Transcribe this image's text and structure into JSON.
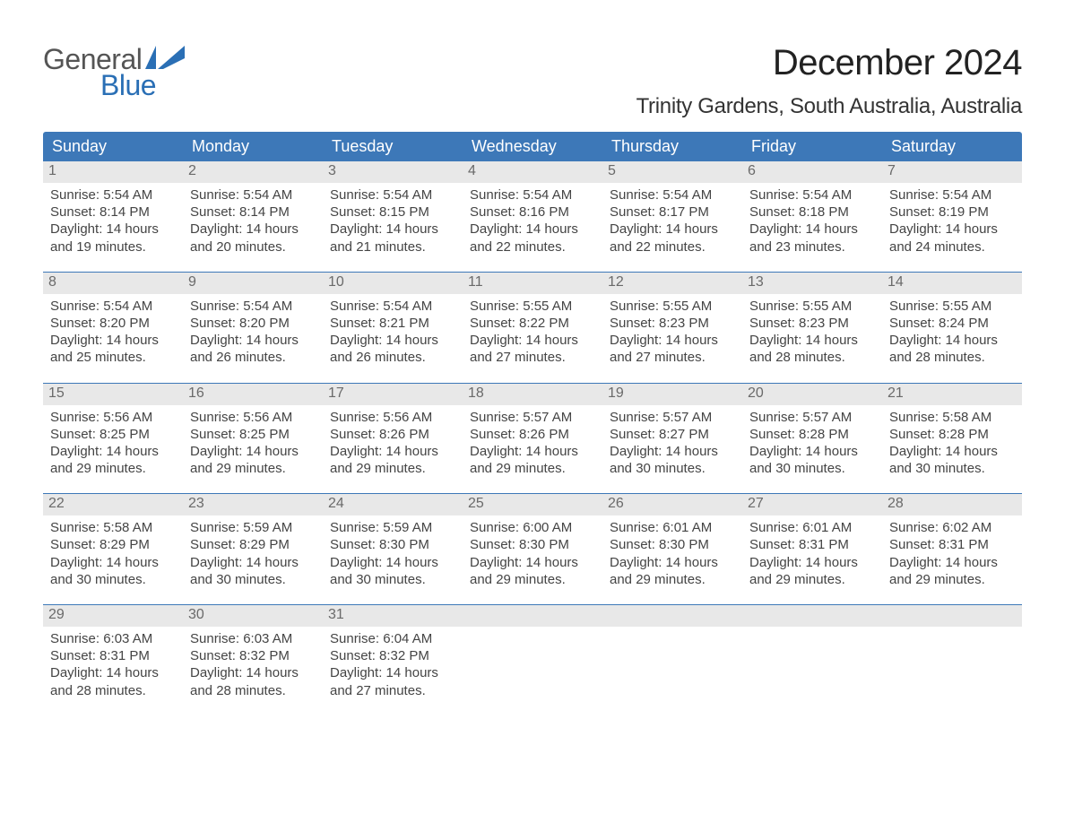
{
  "brand": {
    "word1": "General",
    "word2": "Blue",
    "word1_color": "#555555",
    "word2_color": "#2a6fb5",
    "flag_color": "#2a6fb5"
  },
  "title": {
    "month": "December 2024",
    "location": "Trinity Gardens, South Australia, Australia",
    "month_fontsize": 40,
    "location_fontsize": 24,
    "text_color": "#222222"
  },
  "calendar": {
    "header_bg": "#3d78b8",
    "header_text_color": "#ffffff",
    "daynum_bg": "#e8e8e8",
    "daynum_color": "#6a6a6a",
    "body_text_color": "#444444",
    "week_divider_color": "#3d78b8",
    "columns": [
      "Sunday",
      "Monday",
      "Tuesday",
      "Wednesday",
      "Thursday",
      "Friday",
      "Saturday"
    ],
    "weeks": [
      [
        {
          "day": "1",
          "sunrise": "Sunrise: 5:54 AM",
          "sunset": "Sunset: 8:14 PM",
          "daylight1": "Daylight: 14 hours",
          "daylight2": "and 19 minutes."
        },
        {
          "day": "2",
          "sunrise": "Sunrise: 5:54 AM",
          "sunset": "Sunset: 8:14 PM",
          "daylight1": "Daylight: 14 hours",
          "daylight2": "and 20 minutes."
        },
        {
          "day": "3",
          "sunrise": "Sunrise: 5:54 AM",
          "sunset": "Sunset: 8:15 PM",
          "daylight1": "Daylight: 14 hours",
          "daylight2": "and 21 minutes."
        },
        {
          "day": "4",
          "sunrise": "Sunrise: 5:54 AM",
          "sunset": "Sunset: 8:16 PM",
          "daylight1": "Daylight: 14 hours",
          "daylight2": "and 22 minutes."
        },
        {
          "day": "5",
          "sunrise": "Sunrise: 5:54 AM",
          "sunset": "Sunset: 8:17 PM",
          "daylight1": "Daylight: 14 hours",
          "daylight2": "and 22 minutes."
        },
        {
          "day": "6",
          "sunrise": "Sunrise: 5:54 AM",
          "sunset": "Sunset: 8:18 PM",
          "daylight1": "Daylight: 14 hours",
          "daylight2": "and 23 minutes."
        },
        {
          "day": "7",
          "sunrise": "Sunrise: 5:54 AM",
          "sunset": "Sunset: 8:19 PM",
          "daylight1": "Daylight: 14 hours",
          "daylight2": "and 24 minutes."
        }
      ],
      [
        {
          "day": "8",
          "sunrise": "Sunrise: 5:54 AM",
          "sunset": "Sunset: 8:20 PM",
          "daylight1": "Daylight: 14 hours",
          "daylight2": "and 25 minutes."
        },
        {
          "day": "9",
          "sunrise": "Sunrise: 5:54 AM",
          "sunset": "Sunset: 8:20 PM",
          "daylight1": "Daylight: 14 hours",
          "daylight2": "and 26 minutes."
        },
        {
          "day": "10",
          "sunrise": "Sunrise: 5:54 AM",
          "sunset": "Sunset: 8:21 PM",
          "daylight1": "Daylight: 14 hours",
          "daylight2": "and 26 minutes."
        },
        {
          "day": "11",
          "sunrise": "Sunrise: 5:55 AM",
          "sunset": "Sunset: 8:22 PM",
          "daylight1": "Daylight: 14 hours",
          "daylight2": "and 27 minutes."
        },
        {
          "day": "12",
          "sunrise": "Sunrise: 5:55 AM",
          "sunset": "Sunset: 8:23 PM",
          "daylight1": "Daylight: 14 hours",
          "daylight2": "and 27 minutes."
        },
        {
          "day": "13",
          "sunrise": "Sunrise: 5:55 AM",
          "sunset": "Sunset: 8:23 PM",
          "daylight1": "Daylight: 14 hours",
          "daylight2": "and 28 minutes."
        },
        {
          "day": "14",
          "sunrise": "Sunrise: 5:55 AM",
          "sunset": "Sunset: 8:24 PM",
          "daylight1": "Daylight: 14 hours",
          "daylight2": "and 28 minutes."
        }
      ],
      [
        {
          "day": "15",
          "sunrise": "Sunrise: 5:56 AM",
          "sunset": "Sunset: 8:25 PM",
          "daylight1": "Daylight: 14 hours",
          "daylight2": "and 29 minutes."
        },
        {
          "day": "16",
          "sunrise": "Sunrise: 5:56 AM",
          "sunset": "Sunset: 8:25 PM",
          "daylight1": "Daylight: 14 hours",
          "daylight2": "and 29 minutes."
        },
        {
          "day": "17",
          "sunrise": "Sunrise: 5:56 AM",
          "sunset": "Sunset: 8:26 PM",
          "daylight1": "Daylight: 14 hours",
          "daylight2": "and 29 minutes."
        },
        {
          "day": "18",
          "sunrise": "Sunrise: 5:57 AM",
          "sunset": "Sunset: 8:26 PM",
          "daylight1": "Daylight: 14 hours",
          "daylight2": "and 29 minutes."
        },
        {
          "day": "19",
          "sunrise": "Sunrise: 5:57 AM",
          "sunset": "Sunset: 8:27 PM",
          "daylight1": "Daylight: 14 hours",
          "daylight2": "and 30 minutes."
        },
        {
          "day": "20",
          "sunrise": "Sunrise: 5:57 AM",
          "sunset": "Sunset: 8:28 PM",
          "daylight1": "Daylight: 14 hours",
          "daylight2": "and 30 minutes."
        },
        {
          "day": "21",
          "sunrise": "Sunrise: 5:58 AM",
          "sunset": "Sunset: 8:28 PM",
          "daylight1": "Daylight: 14 hours",
          "daylight2": "and 30 minutes."
        }
      ],
      [
        {
          "day": "22",
          "sunrise": "Sunrise: 5:58 AM",
          "sunset": "Sunset: 8:29 PM",
          "daylight1": "Daylight: 14 hours",
          "daylight2": "and 30 minutes."
        },
        {
          "day": "23",
          "sunrise": "Sunrise: 5:59 AM",
          "sunset": "Sunset: 8:29 PM",
          "daylight1": "Daylight: 14 hours",
          "daylight2": "and 30 minutes."
        },
        {
          "day": "24",
          "sunrise": "Sunrise: 5:59 AM",
          "sunset": "Sunset: 8:30 PM",
          "daylight1": "Daylight: 14 hours",
          "daylight2": "and 30 minutes."
        },
        {
          "day": "25",
          "sunrise": "Sunrise: 6:00 AM",
          "sunset": "Sunset: 8:30 PM",
          "daylight1": "Daylight: 14 hours",
          "daylight2": "and 29 minutes."
        },
        {
          "day": "26",
          "sunrise": "Sunrise: 6:01 AM",
          "sunset": "Sunset: 8:30 PM",
          "daylight1": "Daylight: 14 hours",
          "daylight2": "and 29 minutes."
        },
        {
          "day": "27",
          "sunrise": "Sunrise: 6:01 AM",
          "sunset": "Sunset: 8:31 PM",
          "daylight1": "Daylight: 14 hours",
          "daylight2": "and 29 minutes."
        },
        {
          "day": "28",
          "sunrise": "Sunrise: 6:02 AM",
          "sunset": "Sunset: 8:31 PM",
          "daylight1": "Daylight: 14 hours",
          "daylight2": "and 29 minutes."
        }
      ],
      [
        {
          "day": "29",
          "sunrise": "Sunrise: 6:03 AM",
          "sunset": "Sunset: 8:31 PM",
          "daylight1": "Daylight: 14 hours",
          "daylight2": "and 28 minutes."
        },
        {
          "day": "30",
          "sunrise": "Sunrise: 6:03 AM",
          "sunset": "Sunset: 8:32 PM",
          "daylight1": "Daylight: 14 hours",
          "daylight2": "and 28 minutes."
        },
        {
          "day": "31",
          "sunrise": "Sunrise: 6:04 AM",
          "sunset": "Sunset: 8:32 PM",
          "daylight1": "Daylight: 14 hours",
          "daylight2": "and 27 minutes."
        },
        null,
        null,
        null,
        null
      ]
    ]
  }
}
